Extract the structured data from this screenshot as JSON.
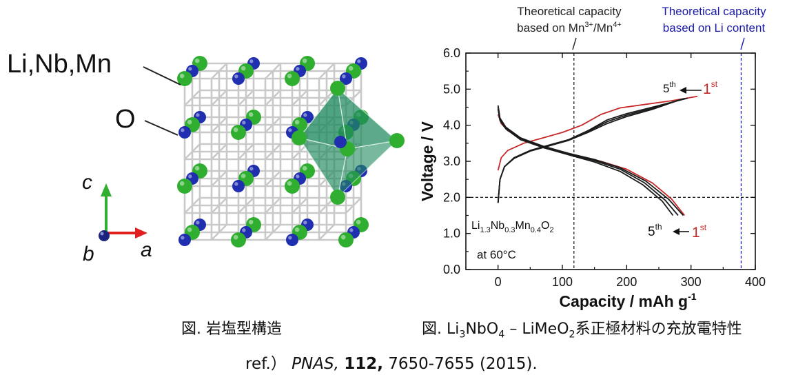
{
  "structure_figure": {
    "labels": {
      "cations": "Li,Nb,Mn",
      "anion": "O",
      "axis_c": "c",
      "axis_b": "b",
      "axis_a": "a"
    },
    "colors": {
      "cation": "#1f2fb0",
      "oxygen": "#2fae2f",
      "octahedron": "#1f8a5e",
      "bond": "#c9c9c9",
      "axis_c": "#2fae2f",
      "axis_a": "#e02020",
      "axis_b": "#1a237e"
    },
    "caption": "図. 岩塩型構造"
  },
  "chart_data": {
    "type": "line",
    "xlabel": "Capacity / mAh g",
    "xlabel_superscript": "-1",
    "ylabel": "Voltage / V",
    "xlim": [
      -50,
      400
    ],
    "ylim": [
      0,
      6
    ],
    "xticks": [
      0,
      100,
      200,
      300,
      400
    ],
    "yticks": [
      "0.0",
      "1.0",
      "2.0",
      "3.0",
      "4.0",
      "5.0",
      "6.0"
    ],
    "grid": false,
    "reference_lines": [
      {
        "type": "vertical",
        "x": 118,
        "style": "dashed",
        "color": "#222222",
        "label_line1": "Theoretical capacity",
        "label_line2": "based on Mn",
        "label_sup1": "3+",
        "label_mid": "/Mn",
        "label_sup2": "4+"
      },
      {
        "type": "vertical",
        "x": 378,
        "style": "dashed",
        "color": "#1a1aa8",
        "label_line1": "Theoretical capacity",
        "label_line2": "based on Li content"
      },
      {
        "type": "horizontal",
        "y": 2.0,
        "style": "dashed",
        "color": "#222222"
      }
    ],
    "series": [
      {
        "cycle": "1",
        "kind": "charge",
        "color": "#c62828",
        "points": [
          [
            0,
            2.75
          ],
          [
            5,
            3.1
          ],
          [
            15,
            3.3
          ],
          [
            40,
            3.5
          ],
          [
            70,
            3.65
          ],
          [
            100,
            3.8
          ],
          [
            130,
            4.0
          ],
          [
            160,
            4.3
          ],
          [
            190,
            4.48
          ],
          [
            230,
            4.58
          ],
          [
            270,
            4.68
          ],
          [
            310,
            4.8
          ]
        ]
      },
      {
        "cycle": "1",
        "kind": "discharge",
        "color": "#c62828",
        "points": [
          [
            0,
            4.3
          ],
          [
            5,
            4.05
          ],
          [
            15,
            3.85
          ],
          [
            40,
            3.6
          ],
          [
            80,
            3.35
          ],
          [
            120,
            3.15
          ],
          [
            160,
            3.0
          ],
          [
            200,
            2.78
          ],
          [
            240,
            2.4
          ],
          [
            270,
            1.95
          ],
          [
            290,
            1.5
          ]
        ]
      },
      {
        "cycle": "2",
        "kind": "charge",
        "color": "#1a1a1a",
        "points": [
          [
            0,
            1.85
          ],
          [
            3,
            2.5
          ],
          [
            10,
            2.85
          ],
          [
            25,
            3.1
          ],
          [
            50,
            3.3
          ],
          [
            80,
            3.45
          ],
          [
            110,
            3.6
          ],
          [
            140,
            3.85
          ],
          [
            170,
            4.15
          ],
          [
            200,
            4.32
          ],
          [
            240,
            4.5
          ],
          [
            295,
            4.75
          ]
        ]
      },
      {
        "cycle": "2",
        "kind": "discharge",
        "color": "#1a1a1a",
        "points": [
          [
            0,
            4.55
          ],
          [
            3,
            4.2
          ],
          [
            12,
            3.95
          ],
          [
            35,
            3.65
          ],
          [
            70,
            3.42
          ],
          [
            110,
            3.22
          ],
          [
            150,
            3.05
          ],
          [
            190,
            2.82
          ],
          [
            230,
            2.45
          ],
          [
            265,
            1.95
          ],
          [
            288,
            1.5
          ]
        ]
      },
      {
        "cycle": "3",
        "kind": "charge",
        "color": "#1a1a1a",
        "points": [
          [
            0,
            1.85
          ],
          [
            3,
            2.5
          ],
          [
            10,
            2.85
          ],
          [
            25,
            3.1
          ],
          [
            50,
            3.3
          ],
          [
            80,
            3.45
          ],
          [
            110,
            3.6
          ],
          [
            140,
            3.83
          ],
          [
            170,
            4.1
          ],
          [
            200,
            4.28
          ],
          [
            240,
            4.47
          ],
          [
            290,
            4.74
          ]
        ]
      },
      {
        "cycle": "3",
        "kind": "discharge",
        "color": "#1a1a1a",
        "points": [
          [
            0,
            4.5
          ],
          [
            3,
            4.17
          ],
          [
            12,
            3.93
          ],
          [
            35,
            3.63
          ],
          [
            70,
            3.4
          ],
          [
            110,
            3.2
          ],
          [
            150,
            3.02
          ],
          [
            190,
            2.78
          ],
          [
            228,
            2.4
          ],
          [
            260,
            1.92
          ],
          [
            280,
            1.5
          ]
        ]
      },
      {
        "cycle": "5",
        "kind": "charge",
        "color": "#1a1a1a",
        "points": [
          [
            0,
            1.85
          ],
          [
            3,
            2.5
          ],
          [
            10,
            2.85
          ],
          [
            25,
            3.08
          ],
          [
            50,
            3.28
          ],
          [
            80,
            3.43
          ],
          [
            110,
            3.58
          ],
          [
            140,
            3.8
          ],
          [
            170,
            4.05
          ],
          [
            200,
            4.24
          ],
          [
            240,
            4.44
          ],
          [
            285,
            4.72
          ]
        ]
      },
      {
        "cycle": "5",
        "kind": "discharge",
        "color": "#1a1a1a",
        "points": [
          [
            0,
            4.45
          ],
          [
            3,
            4.13
          ],
          [
            12,
            3.9
          ],
          [
            35,
            3.6
          ],
          [
            70,
            3.38
          ],
          [
            110,
            3.18
          ],
          [
            150,
            2.98
          ],
          [
            190,
            2.72
          ],
          [
            225,
            2.35
          ],
          [
            255,
            1.9
          ],
          [
            272,
            1.5
          ]
        ]
      }
    ],
    "annotations": {
      "upper_5th": "5",
      "upper_5th_sup": "th",
      "upper_1st": "1",
      "upper_1st_sup": "st",
      "lower_5th": "5",
      "lower_5th_sup": "th",
      "lower_1st": "1",
      "lower_1st_sup": "st",
      "formula": "Li1.3Nb0.3Mn0.4O2",
      "temperature": "at 60°C"
    },
    "colors": {
      "first_cycle": "#c62828",
      "other_cycles": "#1a1a1a",
      "arrow": "#111111"
    }
  },
  "captions": {
    "chart_caption_prefix": "図. Li",
    "chart_caption_rest": "系正極材料の充放電特性"
  },
  "reference": {
    "prefix": "ref.）",
    "journal": "PNAS,",
    "volume": "112,",
    "pages": "7650-7655 (2015)."
  }
}
